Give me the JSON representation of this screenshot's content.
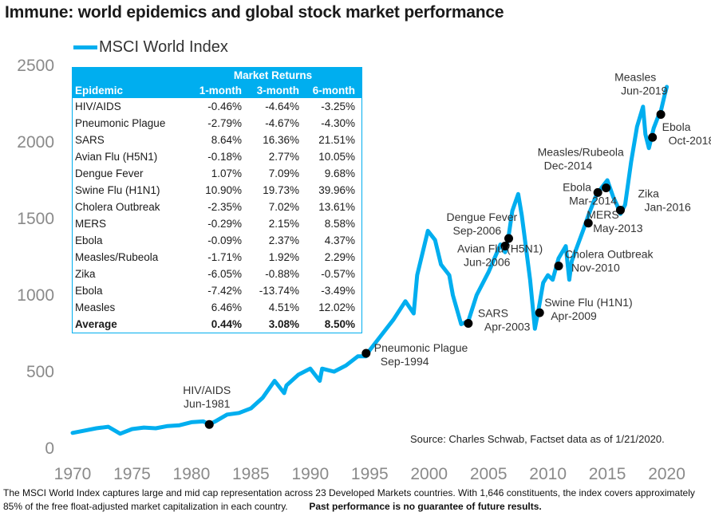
{
  "title": "Immune: world epidemics and global stock market performance",
  "legend": {
    "label": "MSCI World Index",
    "color": "#00aeef"
  },
  "source": "Source: Charles Schwab, Factset data as of 1/21/2020.",
  "footnote": {
    "text": "The MSCI World Index captures large and mid cap representation across 23 Developed Markets countries. With 1,646 constituents, the index covers approximately 85% of the free float-adjusted market capitalization in each country.",
    "disclaimer": "Past performance is no guarantee of future results."
  },
  "table": {
    "group_header": "Market Returns",
    "headers": [
      "Epidemic",
      "1-month",
      "3-month",
      "6-month"
    ],
    "rows": [
      [
        "HIV/AIDS",
        "-0.46%",
        "-4.64%",
        "-3.25%"
      ],
      [
        "Pneumonic Plague",
        "-2.79%",
        "-4.67%",
        "-4.30%"
      ],
      [
        "SARS",
        "8.64%",
        "16.36%",
        "21.51%"
      ],
      [
        "Avian Flu (H5N1)",
        "-0.18%",
        "2.77%",
        "10.05%"
      ],
      [
        "Dengue Fever",
        "1.07%",
        "7.09%",
        "9.68%"
      ],
      [
        "Swine Flu (H1N1)",
        "10.90%",
        "19.73%",
        "39.96%"
      ],
      [
        "Cholera Outbreak",
        "-2.35%",
        "7.02%",
        "13.61%"
      ],
      [
        "MERS",
        "-0.29%",
        "2.15%",
        "8.58%"
      ],
      [
        "Ebola",
        "-0.09%",
        "2.37%",
        "4.37%"
      ],
      [
        "Measles/Rubeola",
        "-1.71%",
        "1.92%",
        "2.29%"
      ],
      [
        "Zika",
        "-6.05%",
        "-0.88%",
        "-0.57%"
      ],
      [
        "Ebola",
        "-7.42%",
        "-13.74%",
        "-3.49%"
      ],
      [
        "Measles",
        "6.46%",
        "4.51%",
        "12.02%"
      ]
    ],
    "average": [
      "Average",
      "0.44%",
      "3.08%",
      "8.50%"
    ]
  },
  "chart_data": {
    "type": "line",
    "title": "Immune: world epidemics and global stock market performance",
    "xlabel": "",
    "ylabel": "",
    "xlim": [
      1970,
      2020.5
    ],
    "ylim": [
      0,
      2500
    ],
    "xticks": [
      1970,
      1975,
      1980,
      1985,
      1990,
      1995,
      2000,
      2005,
      2010,
      2015,
      2020
    ],
    "yticks": [
      0,
      500,
      1000,
      1500,
      2000,
      2500
    ],
    "grid": false,
    "legend_position": "top-left",
    "series": [
      {
        "name": "MSCI World Index",
        "x": [
          1970,
          1971,
          1972,
          1973,
          1974,
          1975,
          1976,
          1977,
          1978,
          1979,
          1980,
          1981,
          1981.5,
          1982,
          1983,
          1984,
          1985,
          1986,
          1987,
          1987.8,
          1988,
          1989,
          1990,
          1990.8,
          1991,
          1992,
          1993,
          1994,
          1994.7,
          1995,
          1996,
          1997,
          1998,
          1998.7,
          1999,
          1999.9,
          2000.5,
          2001,
          2001.7,
          2002,
          2002.7,
          2003.3,
          2004,
          2005,
          2006,
          2006.4,
          2006.7,
          2007,
          2007.5,
          2007.8,
          2008,
          2008.5,
          2008.9,
          2009.2,
          2009.6,
          2010,
          2010.4,
          2010.9,
          2011.5,
          2011.8,
          2012,
          2013,
          2013.4,
          2014,
          2014.5,
          2015,
          2015.5,
          2015.8,
          2016.1,
          2016.5,
          2017,
          2017.5,
          2018,
          2018.2,
          2018.5,
          2018.9,
          2019.3,
          2019.5,
          2019.8,
          2020
        ],
        "values": [
          100,
          115,
          130,
          140,
          95,
          125,
          135,
          130,
          145,
          150,
          170,
          175,
          155,
          175,
          220,
          230,
          260,
          330,
          440,
          360,
          410,
          480,
          520,
          440,
          520,
          500,
          540,
          600,
          600,
          640,
          740,
          840,
          960,
          880,
          1130,
          1420,
          1360,
          1200,
          1130,
          1000,
          810,
          830,
          1000,
          1150,
          1330,
          1280,
          1390,
          1550,
          1660,
          1520,
          1400,
          1100,
          780,
          900,
          1080,
          1130,
          1100,
          1240,
          1320,
          1100,
          1220,
          1430,
          1520,
          1640,
          1700,
          1750,
          1640,
          1590,
          1530,
          1590,
          1870,
          2100,
          2230,
          2050,
          1960,
          2090,
          2170,
          2200,
          2300,
          2360
        ]
      }
    ],
    "events": [
      {
        "label": "HIV/AIDS",
        "date": "Jun-1981",
        "x": 1981.5,
        "y": 155
      },
      {
        "label": "Pneumonic Plague",
        "date": "Sep-1994",
        "x": 1994.7,
        "y": 620
      },
      {
        "label": "SARS",
        "date": "Apr-2003",
        "x": 2003.3,
        "y": 815
      },
      {
        "label": "Avian Flu (H5N1)",
        "date": "Jun-2006",
        "x": 2006.4,
        "y": 1320
      },
      {
        "label": "Dengue Fever",
        "date": "Sep-2006",
        "x": 2006.7,
        "y": 1370
      },
      {
        "label": "Swine Flu (H1N1)",
        "date": "Apr-2009",
        "x": 2009.3,
        "y": 885
      },
      {
        "label": "Cholera Outbreak",
        "date": "Nov-2010",
        "x": 2010.9,
        "y": 1190
      },
      {
        "label": "MERS",
        "date": "May-2013",
        "x": 2013.4,
        "y": 1470
      },
      {
        "label": "Ebola",
        "date": "Mar-2014",
        "x": 2014.2,
        "y": 1670
      },
      {
        "label": "Measles/Rubeola",
        "date": "Dec-2014",
        "x": 2014.9,
        "y": 1700
      },
      {
        "label": "Zika",
        "date": "Jan-2016",
        "x": 2016.1,
        "y": 1555
      },
      {
        "label": "Ebola",
        "date": "Oct-2018",
        "x": 2018.8,
        "y": 2030
      },
      {
        "label": "Measles",
        "date": "Jun-2019",
        "x": 2019.5,
        "y": 2180
      }
    ]
  }
}
